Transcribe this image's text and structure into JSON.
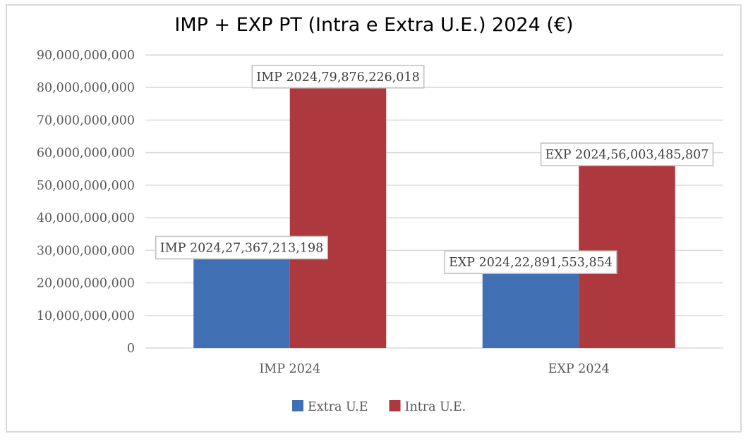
{
  "chart_data": {
    "type": "bar",
    "title": "IMP + EXP PT (Intra e Extra U.E.) 2024 (€)",
    "xlabel": "",
    "ylabel": "",
    "categories": [
      "IMP 2024",
      "EXP 2024"
    ],
    "series": [
      {
        "name": "Extra U.E",
        "color": "#416fb3",
        "values": [
          27367213198,
          22891553854
        ],
        "data_labels": [
          "IMP 2024,27,367,213,198",
          "EXP 2024,22,891,553,854"
        ]
      },
      {
        "name": "Intra U.E.",
        "color": "#ad393e",
        "values": [
          79876226018,
          56003485807
        ],
        "data_labels": [
          "IMP 2024,79,876,226,018",
          "EXP 2024,56,003,485,807"
        ]
      }
    ],
    "ylim": [
      0,
      90000000000
    ],
    "yticks": [
      0,
      10000000000,
      20000000000,
      30000000000,
      40000000000,
      50000000000,
      60000000000,
      70000000000,
      80000000000,
      90000000000
    ],
    "ytick_labels": [
      "0",
      "10,000,000,000",
      "20,000,000,000",
      "30,000,000,000",
      "40,000,000,000",
      "50,000,000,000",
      "60,000,000,000",
      "70,000,000,000",
      "80,000,000,000",
      "90,000,000,000"
    ],
    "grid": true,
    "legend_position": "bottom"
  }
}
